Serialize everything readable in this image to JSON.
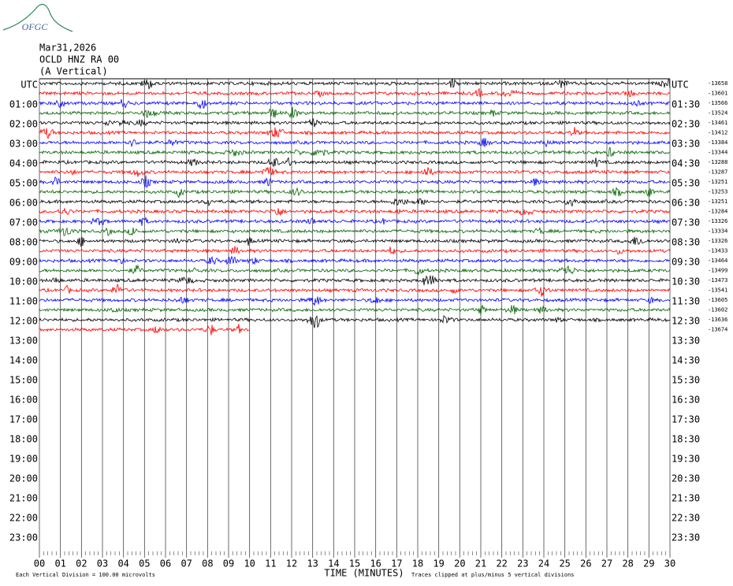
{
  "header": {
    "logo": "OFGC",
    "date": "Mar31,2026",
    "station": "OCLD HNZ RA 00",
    "component": "(A Vertical)"
  },
  "left_labels": [
    "UTC",
    "01:00",
    "02:00",
    "03:00",
    "04:00",
    "05:00",
    "06:00",
    "07:00",
    "08:00",
    "09:00",
    "10:00",
    "11:00",
    "12:00",
    "13:00",
    "14:00",
    "15:00",
    "16:00",
    "17:00",
    "18:00",
    "19:00",
    "20:00",
    "21:00",
    "22:00",
    "23:00"
  ],
  "right_labels": [
    "UTC",
    "01:30",
    "02:30",
    "03:30",
    "04:30",
    "05:30",
    "06:30",
    "07:30",
    "08:30",
    "09:30",
    "10:30",
    "11:30",
    "12:30",
    "13:30",
    "14:30",
    "15:30",
    "16:30",
    "17:30",
    "18:30",
    "19:30",
    "20:30",
    "21:30",
    "22:30",
    "23:30"
  ],
  "trace_offsets": [
    -13658,
    -13601,
    -13566,
    -13524,
    -13461,
    -13412,
    -13384,
    -13344,
    -13288,
    -13287,
    -13251,
    -13253,
    -13251,
    -13284,
    -13326,
    -13334,
    -13326,
    -13433,
    -13464,
    -13499,
    -13473,
    -13541,
    -13605,
    -13602,
    -13636,
    -13674
  ],
  "trace_colors": [
    "#000000",
    "#ff0000",
    "#0000ff",
    "#006400"
  ],
  "x_ticks": [
    "00",
    "01",
    "02",
    "03",
    "04",
    "05",
    "06",
    "07",
    "08",
    "09",
    "10",
    "11",
    "12",
    "13",
    "14",
    "15",
    "16",
    "17",
    "18",
    "19",
    "20",
    "21",
    "22",
    "23",
    "24",
    "25",
    "26",
    "27",
    "28",
    "29",
    "30"
  ],
  "x_axis_title": "TIME (MINUTES)",
  "footer": {
    "scale_note": "Each Vertical Division =  100.00 microvolts",
    "clip_note": "Traces clipped at plus/minus 5 vertical divisions"
  }
}
